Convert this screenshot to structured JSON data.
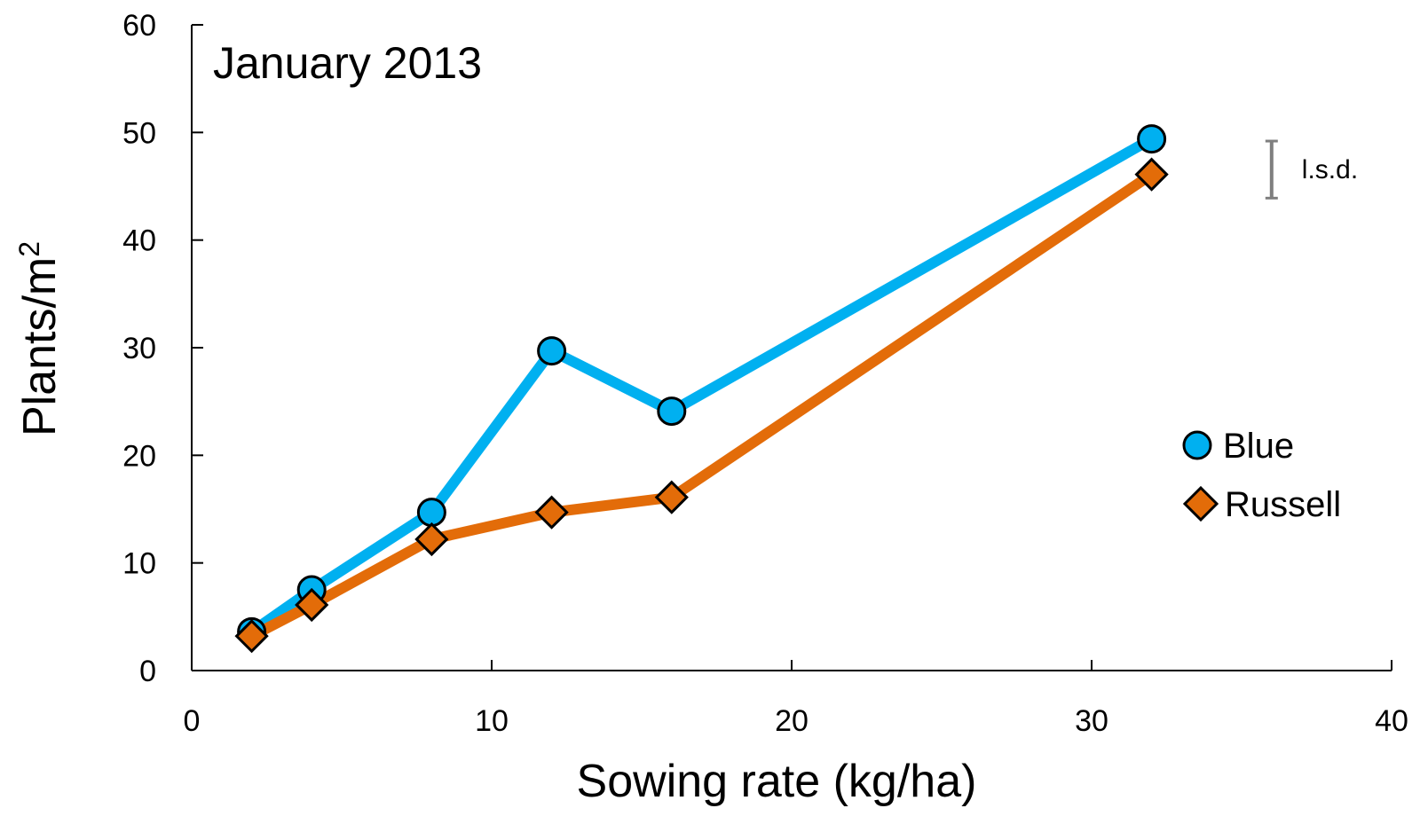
{
  "chart_data": {
    "type": "line",
    "title": "January 2013",
    "xlabel": "Sowing rate (kg/ha)",
    "ylabel": "Plants/m",
    "ylabel_superscript": "2",
    "xlim": [
      0,
      40
    ],
    "ylim": [
      0,
      60
    ],
    "xticks": [
      0,
      10,
      20,
      30,
      40
    ],
    "yticks": [
      0,
      10,
      20,
      30,
      40,
      50,
      60
    ],
    "grid": false,
    "legend_position": "right",
    "series": [
      {
        "name": "Blue",
        "marker": "circle",
        "color": "#00B0F0",
        "x": [
          2,
          4,
          8,
          12,
          16,
          32
        ],
        "y": [
          3.6,
          7.5,
          14.7,
          29.7,
          24.1,
          49.4
        ]
      },
      {
        "name": "Russell",
        "marker": "diamond",
        "color": "#E36C09",
        "x": [
          2,
          4,
          8,
          12,
          16,
          32
        ],
        "y": [
          3.2,
          6.1,
          12.2,
          14.7,
          16.1,
          46.1
        ]
      }
    ],
    "annotations": [
      {
        "text": "l.s.d.",
        "kind": "error-bar",
        "x": 36,
        "y_low": 43.9,
        "y_high": 49.2
      }
    ]
  }
}
